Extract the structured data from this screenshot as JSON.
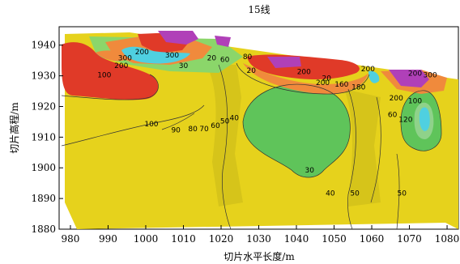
{
  "chart_data": {
    "type": "heatmap",
    "title": "15线",
    "xlabel": "切片水平长度/m",
    "ylabel": "切片高程/m",
    "xlim": [
      977,
      1083
    ],
    "ylim": [
      1880,
      1946
    ],
    "x_ticks": [
      980,
      990,
      1000,
      1010,
      1020,
      1030,
      1040,
      1050,
      1060,
      1070,
      1080
    ],
    "y_ticks": [
      1880,
      1890,
      1900,
      1910,
      1920,
      1930,
      1940
    ],
    "colors": {
      "yellow": "#e6d21c",
      "green": "#5fc45a",
      "red": "#e03a28",
      "orange": "#f08a3c",
      "magenta": "#b040b8",
      "cyan": "#4fd0e0",
      "background": "#ffffff"
    },
    "contour_labels": [
      {
        "text": "100",
        "x": 1001.5,
        "y": 1913.5
      },
      {
        "text": "90",
        "x": 1008.0,
        "y": 1911.5
      },
      {
        "text": "80",
        "x": 1012.5,
        "y": 1912.0
      },
      {
        "text": "70",
        "x": 1015.5,
        "y": 1912.0
      },
      {
        "text": "60",
        "x": 1018.5,
        "y": 1913.0
      },
      {
        "text": "50",
        "x": 1021.0,
        "y": 1914.5
      },
      {
        "text": "40",
        "x": 1023.5,
        "y": 1915.5
      },
      {
        "text": "40",
        "x": 1049.0,
        "y": 1891.0
      },
      {
        "text": "50",
        "x": 1055.5,
        "y": 1891.0
      },
      {
        "text": "50",
        "x": 1068.0,
        "y": 1891.0
      },
      {
        "text": "30",
        "x": 1043.5,
        "y": 1898.5
      },
      {
        "text": "20",
        "x": 1048.0,
        "y": 1928.5
      },
      {
        "text": "200",
        "x": 1047.0,
        "y": 1927.0
      },
      {
        "text": "160",
        "x": 1052.0,
        "y": 1926.5
      },
      {
        "text": "180",
        "x": 1056.5,
        "y": 1925.5
      },
      {
        "text": "20",
        "x": 1028.0,
        "y": 1931.0
      },
      {
        "text": "20",
        "x": 1017.5,
        "y": 1935.0
      },
      {
        "text": "60",
        "x": 1021.0,
        "y": 1934.5
      },
      {
        "text": "80",
        "x": 1027.0,
        "y": 1935.5
      },
      {
        "text": "200",
        "x": 1042.0,
        "y": 1930.5
      },
      {
        "text": "200",
        "x": 999.0,
        "y": 1937.0
      },
      {
        "text": "300",
        "x": 1007.0,
        "y": 1936.0
      },
      {
        "text": "30",
        "x": 1010.0,
        "y": 1932.5
      },
      {
        "text": "300",
        "x": 994.5,
        "y": 1935.0
      },
      {
        "text": "200",
        "x": 993.5,
        "y": 1932.5
      },
      {
        "text": "100",
        "x": 989.0,
        "y": 1929.5
      },
      {
        "text": "200",
        "x": 1059.0,
        "y": 1931.5
      },
      {
        "text": "200",
        "x": 1071.5,
        "y": 1930.0
      },
      {
        "text": "300",
        "x": 1075.5,
        "y": 1929.5
      },
      {
        "text": "200",
        "x": 1066.5,
        "y": 1922.0
      },
      {
        "text": "100",
        "x": 1071.5,
        "y": 1921.0
      },
      {
        "text": "60",
        "x": 1065.5,
        "y": 1916.5
      },
      {
        "text": "120",
        "x": 1069.0,
        "y": 1915.0
      }
    ]
  }
}
